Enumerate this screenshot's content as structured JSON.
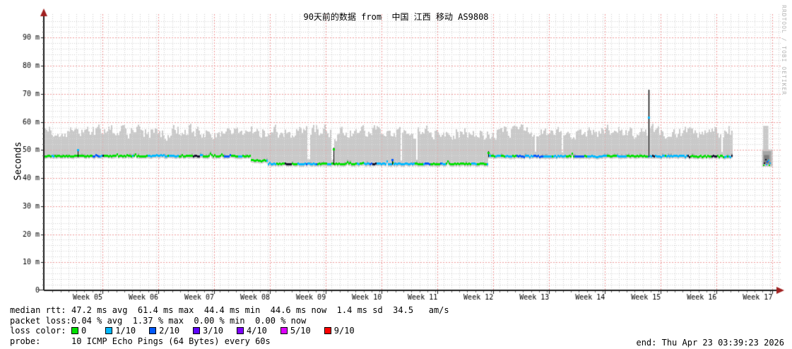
{
  "watermark": "RRDTOOL / TOBI OETIKER",
  "footer": {
    "median_label": "median rtt:",
    "median_values": "47.2 ms avg  61.4 ms max  44.4 ms min  44.6 ms now  1.4 ms sd  34.5   am/s",
    "packet_label": "packet loss:",
    "packet_values": "0.04 % avg  1.37 % max  0.00 % min  0.00 % now",
    "loss_color_label": "loss color:",
    "loss_items": [
      {
        "label": "0",
        "color": "#00e000"
      },
      {
        "label": "1/10",
        "color": "#00b8ff"
      },
      {
        "label": "2/10",
        "color": "#0059ff"
      },
      {
        "label": "3/10",
        "color": "#5f04ff"
      },
      {
        "label": "4/10",
        "color": "#7e00ff"
      },
      {
        "label": "5/10",
        "color": "#dd00ff"
      },
      {
        "label": "9/10",
        "color": "#ff0000"
      }
    ],
    "probe_label": "probe:",
    "probe_value": "10 ICMP Echo Pings (64 Bytes) every 60s",
    "end_text": "end: Thu Apr 23 03:39:23 2026"
  },
  "chart_data": {
    "type": "line",
    "subtype": "smokeping-latency",
    "title": "90天前的数据 from  中国 江西 移动 AS9808",
    "ylabel": "Seconds",
    "ylim": [
      0,
      98.4
    ],
    "grid": true,
    "noise_seed": 1337,
    "stats": {
      "median_avg_ms": 47.2,
      "median_max_ms": 61.4,
      "median_min_ms": 44.4,
      "median_now_ms": 44.6,
      "sd_ms": 1.4,
      "loss_avg_pct": 0.04,
      "loss_max_pct": 1.37,
      "loss_min_pct": 0.0,
      "loss_now_pct": 0.0
    },
    "y_axis": {
      "unit": "m",
      "major_step_ms": 10,
      "minor_step_ms": 2,
      "ticks": [
        {
          "ms": 0,
          "label": "0"
        },
        {
          "ms": 10,
          "label": "10 m"
        },
        {
          "ms": 20,
          "label": "20 m"
        },
        {
          "ms": 30,
          "label": "30 m"
        },
        {
          "ms": 40,
          "label": "40 m"
        },
        {
          "ms": 50,
          "label": "50 m"
        },
        {
          "ms": 60,
          "label": "60 m"
        },
        {
          "ms": 70,
          "label": "70 m"
        },
        {
          "ms": 80,
          "label": "80 m"
        },
        {
          "ms": 90,
          "label": "90 m"
        }
      ]
    },
    "x_axis": {
      "total_days": 92.3,
      "minor_step_days": 1,
      "first_gridline_day": 7.26,
      "gridline_step_days": 7,
      "ticks": [
        {
          "day": 5.4,
          "label": "Week 05"
        },
        {
          "day": 12.4,
          "label": "Week 06"
        },
        {
          "day": 19.4,
          "label": "Week 07"
        },
        {
          "day": 26.4,
          "label": "Week 08"
        },
        {
          "day": 33.4,
          "label": "Week 09"
        },
        {
          "day": 40.4,
          "label": "Week 10"
        },
        {
          "day": 47.4,
          "label": "Week 11"
        },
        {
          "day": 54.4,
          "label": "Week 12"
        },
        {
          "day": 61.4,
          "label": "Week 13"
        },
        {
          "day": 68.4,
          "label": "Week 14"
        },
        {
          "day": 75.4,
          "label": "Week 15"
        },
        {
          "day": 82.4,
          "label": "Week 16"
        },
        {
          "day": 89.4,
          "label": "Week 17"
        }
      ]
    },
    "colors": {
      "smoke": "#c9c9c9",
      "smoke_bump": "#aeaeae",
      "grid_minor": "#d0d0d0",
      "grid_major": "#ee9a9a",
      "axis": "#1a1a1a",
      "arrow": "#a02020",
      "dark": "#15152e"
    },
    "loss_colors_map": {
      "0": "#00e000",
      "1/10": "#00b8ff",
      "2/10": "#0059ff",
      "3/10": "#5f04ff",
      "4/10": "#7e00ff",
      "5/10": "#dd00ff",
      "9/10": "#ff0000",
      "dark": "#15152e"
    },
    "median": {
      "data_end_day": 86.2,
      "segments": [
        {
          "from_day": 0,
          "to_day": 25.85,
          "ms": 48.0,
          "mix": {
            "0": 0.62,
            "1/10": 0.28,
            "2/10": 0.08,
            "dark": 0.02
          }
        },
        {
          "from_day": 25.85,
          "to_day": 27.95,
          "ms": 46.4,
          "mix": {
            "0": 0.7,
            "1/10": 0.25,
            "2/10": 0.05
          }
        },
        {
          "from_day": 27.95,
          "to_day": 55.55,
          "ms": 45.2,
          "mix": {
            "0": 0.38,
            "1/10": 0.48,
            "2/10": 0.12,
            "dark": 0.02
          }
        },
        {
          "from_day": 55.55,
          "to_day": 86.2,
          "ms": 47.9,
          "mix": {
            "0": 0.45,
            "1/10": 0.42,
            "2/10": 0.11,
            "dark": 0.02
          }
        }
      ]
    },
    "smoke": {
      "top_base_ms": 56.4,
      "top_spread_ms": 7.5,
      "tall_prob": 0.06,
      "notch_prob": 0.006,
      "smooth": 0.45,
      "max_ms": 62.4,
      "below_median_ms": 1.0,
      "notches": [
        {
          "day": 33.1,
          "width_days": 0.35
        },
        {
          "day": 36.0,
          "width_days": 0.3
        }
      ]
    },
    "spikes": [
      {
        "day": 4.16,
        "top_ms": 50.4,
        "cap_ms": 50.0,
        "cap_color_key": "1/10",
        "wide": false
      },
      {
        "day": 36.25,
        "top_ms": 50.8,
        "cap_ms": 50.4,
        "cap_color_key": "0",
        "wide": false
      },
      {
        "day": 43.6,
        "top_ms": 46.8,
        "cap_ms": 46.6,
        "cap_color_key": "2/10",
        "wide": false
      },
      {
        "day": 55.62,
        "top_ms": 49.5,
        "cap_ms": 49.2,
        "cap_color_key": "0",
        "wide": false
      },
      {
        "day": 75.72,
        "top_ms": 71.4,
        "cap_ms": 61.7,
        "cap_color_key": "1/10",
        "wide": true
      }
    ],
    "gap": {
      "from_day": 86.2,
      "to_day": 89.95
    },
    "tail_cluster": {
      "from_day": 89.95,
      "to_day": 91.3,
      "base_top_ms": 50.2,
      "base_bottom_ms": 44.1,
      "tall_from_day": 90.1,
      "tall_to_day": 90.75,
      "tall_top_ms": 58.6,
      "shade": {
        "from_day": 90.05,
        "to_day": 91.1,
        "top_ms": 49.6,
        "bottom_ms": 44.8
      },
      "core": {
        "from_day": 90.2,
        "to_day": 90.85,
        "top_ms": 48.2,
        "bottom_ms": 45.2
      },
      "dots": [
        {
          "day": 90.15,
          "ms": 44.6,
          "key": "0"
        },
        {
          "day": 90.3,
          "ms": 45.4,
          "key": "dark"
        },
        {
          "day": 90.45,
          "ms": 46.6,
          "key": "dark"
        },
        {
          "day": 90.5,
          "ms": 44.9,
          "key": "1/10"
        },
        {
          "day": 90.65,
          "ms": 45.9,
          "key": "2/10"
        },
        {
          "day": 90.75,
          "ms": 46.3,
          "key": "1/10"
        },
        {
          "day": 90.9,
          "ms": 44.5,
          "key": "0"
        },
        {
          "day": 91.0,
          "ms": 45.2,
          "key": "1/10"
        }
      ]
    }
  }
}
